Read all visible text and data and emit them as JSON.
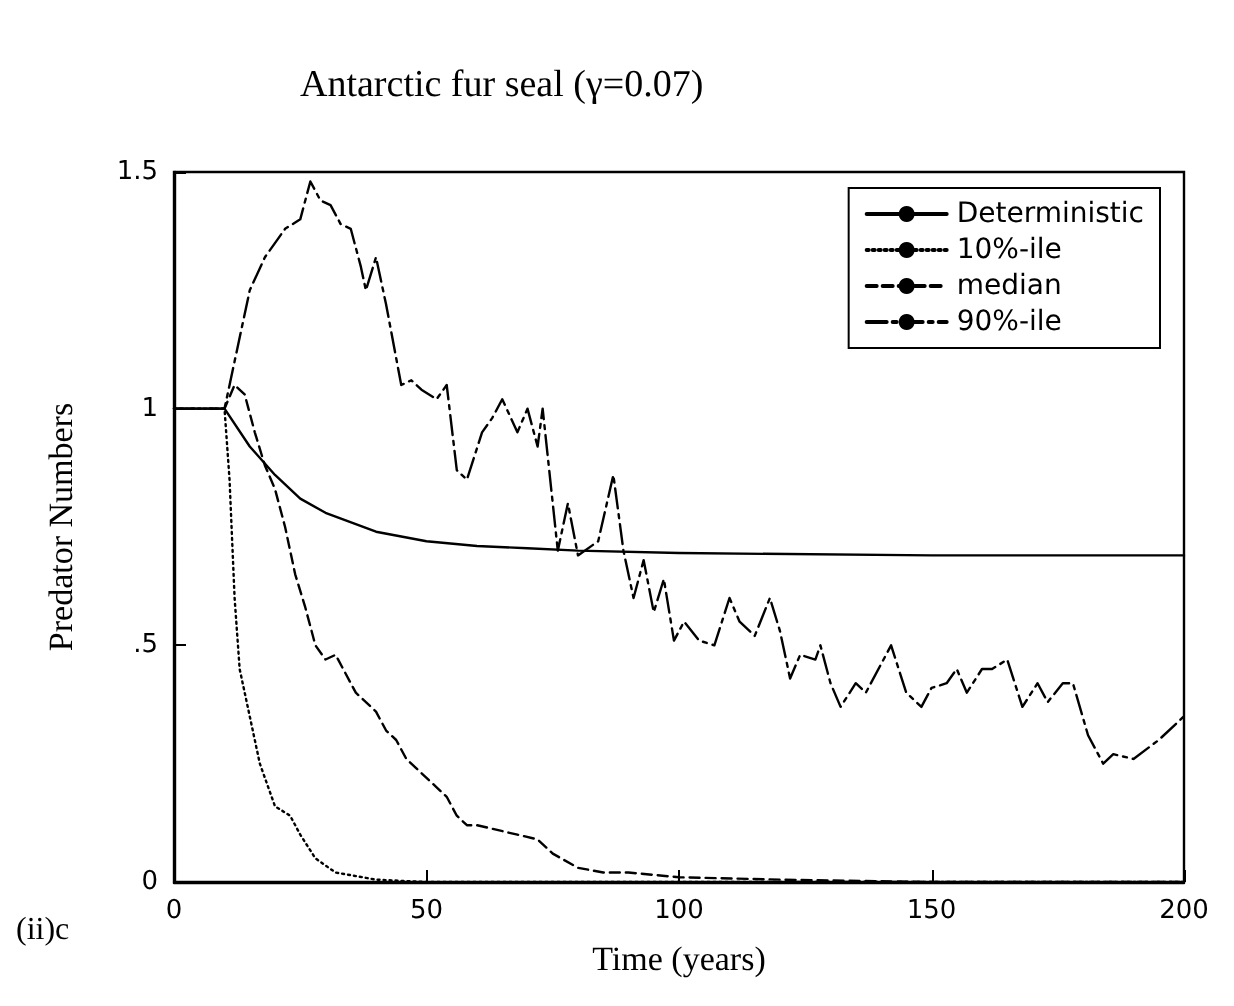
{
  "chart_data": {
    "type": "line",
    "title": "Antarctic fur seal (γ=0.07)",
    "xlabel": "Time (years)",
    "ylabel": "Predator Numbers",
    "annotations": [
      "(ii)c"
    ],
    "xlim": [
      0,
      200
    ],
    "xticks": [
      0,
      50,
      100,
      150,
      200
    ],
    "ylim": [
      0,
      1.5
    ],
    "yticks": [
      0,
      {
        "value": 0.5,
        "label": ".5"
      },
      1,
      1.5
    ],
    "grid": false,
    "legend": "top right",
    "marker": "none",
    "series": [
      {
        "name": "Deterministic",
        "color": "#000000",
        "line_style": "solid",
        "x": [
          0,
          10,
          15,
          20,
          25,
          30,
          40,
          50,
          60,
          70,
          80,
          100,
          150,
          200
        ],
        "values": [
          1,
          1,
          0.92,
          0.86,
          0.81,
          0.78,
          0.74,
          0.72,
          0.71,
          0.705,
          0.7,
          0.695,
          0.69,
          0.69
        ]
      },
      {
        "name": "10%-ile",
        "color": "#000000",
        "line_style": "dotted",
        "x": [
          0,
          10,
          11,
          12,
          13,
          15,
          17,
          20,
          23,
          25,
          28,
          32,
          40,
          50,
          100,
          150,
          200
        ],
        "values": [
          1,
          1,
          0.85,
          0.6,
          0.45,
          0.35,
          0.25,
          0.16,
          0.14,
          0.1,
          0.05,
          0.02,
          0.005,
          0,
          0,
          0,
          0
        ]
      },
      {
        "name": "median",
        "color": "#000000",
        "line_style": "dashed",
        "x": [
          0,
          10,
          12,
          14,
          16,
          18,
          20,
          22,
          24,
          26,
          28,
          30,
          32,
          34,
          36,
          38,
          40,
          42,
          44,
          46,
          48,
          50,
          52,
          54,
          56,
          58,
          60,
          64,
          68,
          72,
          75,
          80,
          85,
          90,
          100,
          120,
          150,
          200
        ],
        "values": [
          1,
          1,
          1.05,
          1.03,
          0.95,
          0.88,
          0.83,
          0.75,
          0.65,
          0.58,
          0.5,
          0.47,
          0.48,
          0.44,
          0.4,
          0.38,
          0.36,
          0.32,
          0.3,
          0.26,
          0.24,
          0.22,
          0.2,
          0.18,
          0.14,
          0.12,
          0.12,
          0.11,
          0.1,
          0.09,
          0.06,
          0.03,
          0.02,
          0.02,
          0.01,
          0.005,
          0,
          0
        ]
      },
      {
        "name": "90%-ile",
        "color": "#000000",
        "line_style": "dashdot",
        "x": [
          0,
          10,
          12,
          15,
          18,
          22,
          25,
          27,
          29,
          31,
          33,
          35,
          37,
          38,
          40,
          42,
          45,
          47,
          49,
          52,
          54,
          56,
          58,
          61,
          63,
          65,
          68,
          70,
          72,
          73,
          76,
          78,
          80,
          84,
          87,
          89,
          91,
          93,
          95,
          97,
          99,
          101,
          104,
          107,
          110,
          112,
          115,
          118,
          120,
          122,
          124,
          127,
          128,
          130,
          132,
          135,
          137,
          142,
          145,
          148,
          150,
          153,
          155,
          157,
          160,
          162,
          165,
          168,
          171,
          173,
          176,
          178,
          181,
          184,
          186,
          190,
          195,
          200
        ],
        "values": [
          1,
          1,
          1.1,
          1.25,
          1.32,
          1.38,
          1.4,
          1.48,
          1.44,
          1.43,
          1.39,
          1.38,
          1.3,
          1.25,
          1.32,
          1.22,
          1.05,
          1.06,
          1.04,
          1.02,
          1.05,
          0.87,
          0.85,
          0.95,
          0.98,
          1.02,
          0.95,
          1.0,
          0.92,
          1.0,
          0.7,
          0.8,
          0.69,
          0.72,
          0.86,
          0.7,
          0.6,
          0.68,
          0.57,
          0.64,
          0.51,
          0.55,
          0.51,
          0.5,
          0.6,
          0.55,
          0.52,
          0.6,
          0.53,
          0.43,
          0.48,
          0.47,
          0.5,
          0.42,
          0.37,
          0.42,
          0.4,
          0.5,
          0.4,
          0.37,
          0.41,
          0.42,
          0.45,
          0.4,
          0.45,
          0.45,
          0.47,
          0.37,
          0.42,
          0.38,
          0.42,
          0.42,
          0.31,
          0.25,
          0.27,
          0.26,
          0.3,
          0.35
        ]
      }
    ]
  }
}
